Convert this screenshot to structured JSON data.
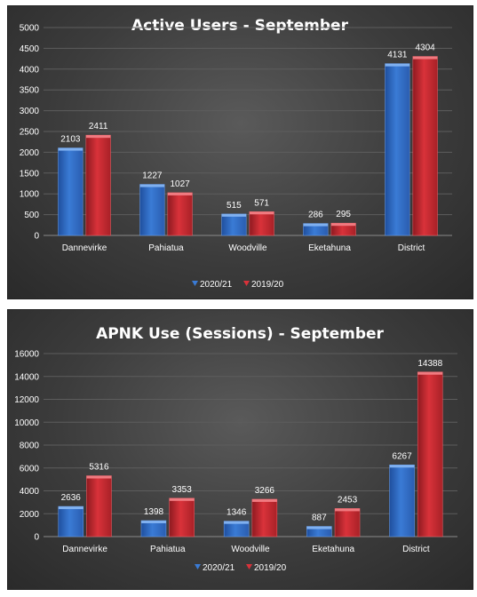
{
  "colors": {
    "series_2020": "#3a7bd5",
    "series_2019": "#d9323a",
    "background": "#3f3f3f",
    "text": "#ffffff"
  },
  "chart_data": [
    {
      "type": "bar",
      "title": "Active Users - September",
      "categories": [
        "Dannevirke",
        "Pahiatua",
        "Woodville",
        "Eketahuna",
        "District"
      ],
      "series": [
        {
          "name": "2020/21",
          "values": [
            2103,
            1227,
            515,
            286,
            4131
          ]
        },
        {
          "name": "2019/20",
          "values": [
            2411,
            1027,
            571,
            295,
            4304
          ]
        }
      ],
      "ylim": [
        0,
        5000
      ],
      "yticks": [
        0,
        500,
        1000,
        1500,
        2000,
        2500,
        3000,
        3500,
        4000,
        4500,
        5000
      ],
      "grid": true,
      "legend": "bottom"
    },
    {
      "type": "bar",
      "title": "APNK Use (Sessions) - September",
      "categories": [
        "Dannevirke",
        "Pahiatua",
        "Woodville",
        "Eketahuna",
        "District"
      ],
      "series": [
        {
          "name": "2020/21",
          "values": [
            2636,
            1398,
            1346,
            887,
            6267
          ]
        },
        {
          "name": "2019/20",
          "values": [
            5316,
            3353,
            3266,
            2453,
            14388
          ]
        }
      ],
      "ylim": [
        0,
        16000
      ],
      "yticks": [
        0,
        2000,
        4000,
        6000,
        8000,
        10000,
        12000,
        14000,
        16000
      ],
      "grid": true,
      "legend": "bottom"
    }
  ]
}
